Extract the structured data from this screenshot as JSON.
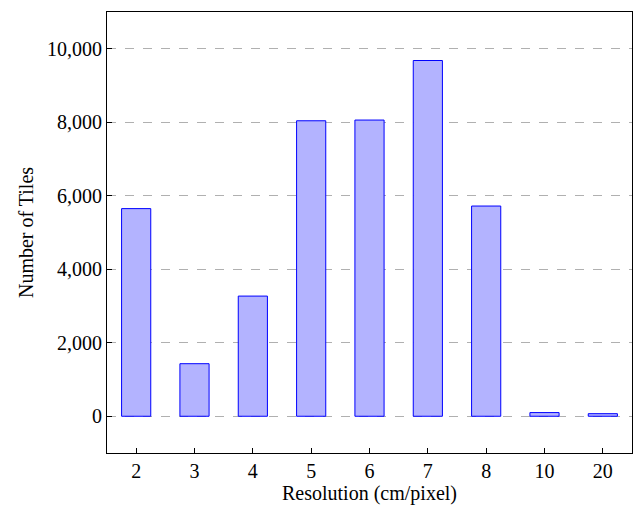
{
  "chart_data": {
    "type": "bar",
    "x_label": "Resolution (cm/pixel)",
    "y_label": "Number of Tiles",
    "categories": [
      "2",
      "3",
      "4",
      "5",
      "6",
      "7",
      "8",
      "10",
      "20"
    ],
    "values": [
      5650,
      1430,
      3270,
      8040,
      8060,
      9680,
      5720,
      100,
      70
    ],
    "color": "#b3b3ff",
    "ylim": [
      -1000,
      11000
    ],
    "yticks": [
      0,
      {
        "value": 2000,
        "label": "2,000"
      },
      {
        "value": 4000,
        "label": "4,000"
      },
      {
        "value": 6000,
        "label": "6,000"
      },
      {
        "value": 8000,
        "label": "8,000"
      },
      {
        "value": 10000,
        "label": "10,000"
      }
    ],
    "grid": true
  }
}
